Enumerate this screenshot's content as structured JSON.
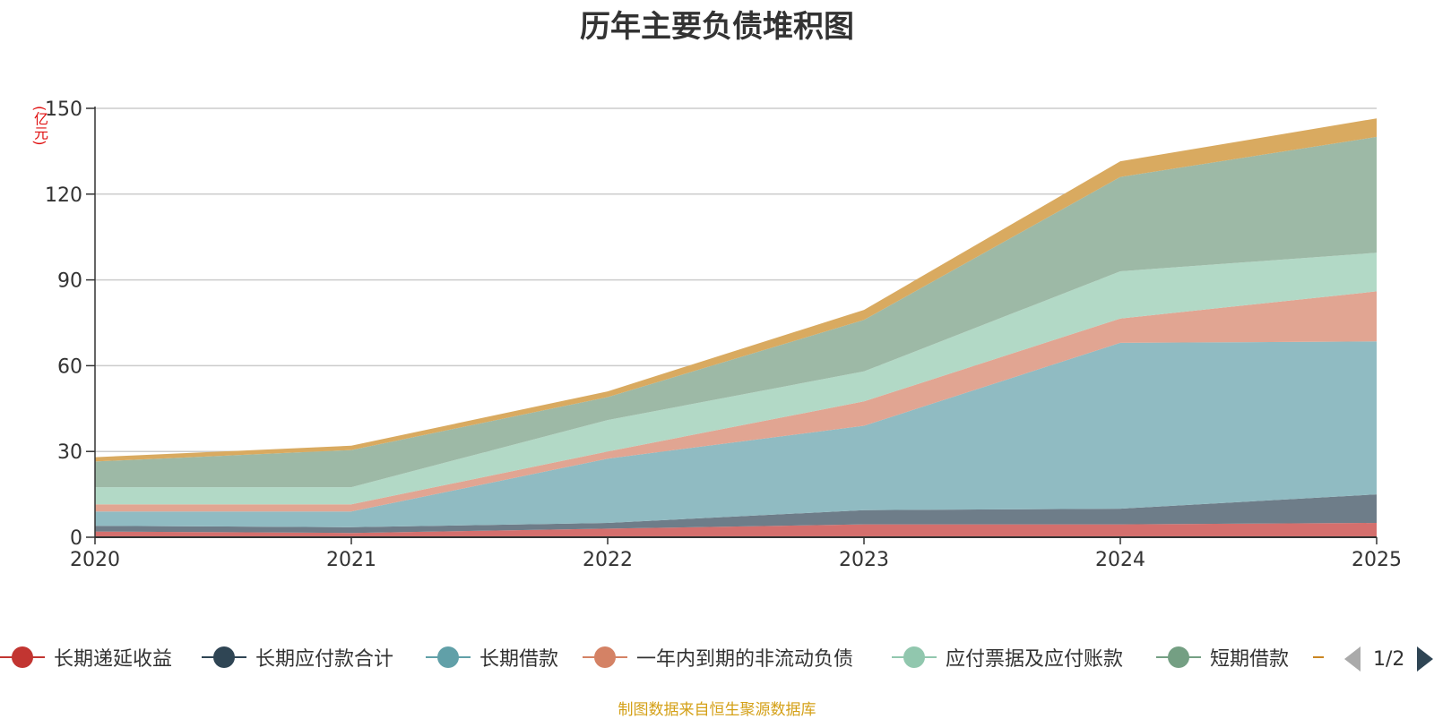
{
  "chart_data": {
    "type": "area",
    "stacked": true,
    "title": "历年主要负债堆积图",
    "ylabel": "(亿元)",
    "categories": [
      "2020",
      "2021",
      "2022",
      "2023",
      "2024",
      "2025"
    ],
    "ylim": [
      0,
      150
    ],
    "yticks": [
      0,
      30,
      60,
      90,
      120,
      150
    ],
    "series": [
      {
        "name": "长期递延收益",
        "color": "#c23531",
        "fill": "#d46f6d",
        "values": [
          2,
          1.5,
          3,
          4.5,
          4.5,
          5
        ]
      },
      {
        "name": "长期应付款合计",
        "color": "#2f4554",
        "fill": "#6e7d89",
        "values": [
          2,
          2,
          2,
          5,
          5.5,
          10
        ]
      },
      {
        "name": "长期借款",
        "color": "#61a0a8",
        "fill": "#90bbc2",
        "values": [
          5,
          5.5,
          22.5,
          29.5,
          58,
          53.5
        ]
      },
      {
        "name": "一年内到期的非流动负债",
        "color": "#d48265",
        "fill": "#e1a592",
        "values": [
          2.5,
          2.5,
          2.5,
          8.5,
          8.5,
          17.5
        ]
      },
      {
        "name": "应付票据及应付账款",
        "color": "#91c7ae",
        "fill": "#b2d9c6",
        "values": [
          6,
          6,
          11,
          10.5,
          16.5,
          13.5
        ]
      },
      {
        "name": "短期借款",
        "color": "#749f83",
        "fill": "#9db9a6",
        "values": [
          9,
          13,
          8,
          18,
          33,
          40.5
        ]
      },
      {
        "name": "",
        "color": "#ca8622",
        "fill": "#d9aa60",
        "values": [
          1.5,
          1.5,
          2,
          3.5,
          5.5,
          6.5
        ]
      }
    ],
    "legend_position": "bottom",
    "grid": true
  },
  "legend": {
    "page": "1/2"
  },
  "footer": "制图数据来自恒生聚源数据库"
}
